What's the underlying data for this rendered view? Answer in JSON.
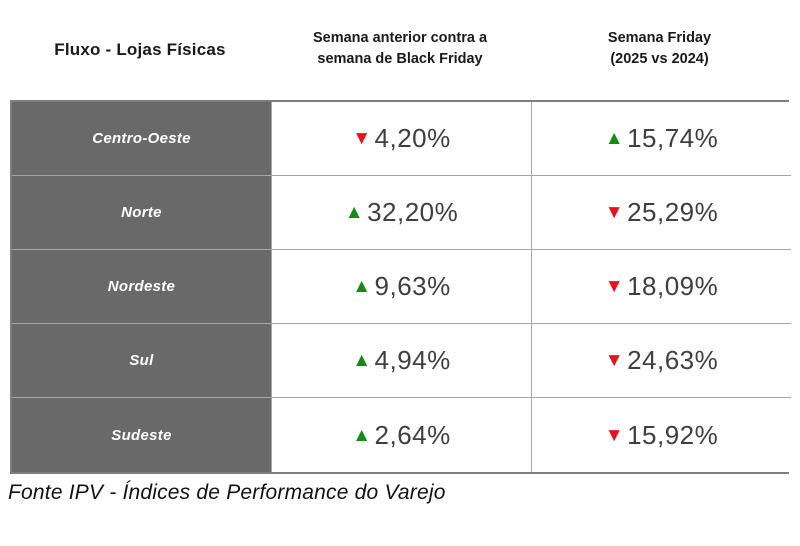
{
  "colors": {
    "positive": "#168a16",
    "negative": "#e8131d",
    "row_header_bg": "#696969",
    "border": "#a6a6a6"
  },
  "header": {
    "title": "Fluxo - Lojas Físicas",
    "col_black_friday": {
      "line1": "Semana anterior contra a",
      "line2": "semana de Black Friday"
    },
    "col_friday": {
      "line1": "Semana Friday",
      "line2": "(2025 vs 2024)"
    }
  },
  "chart_data": {
    "type": "table",
    "title": "Fluxo - Lojas Físicas",
    "columns": [
      "Fluxo - Lojas Físicas",
      "Semana anterior contra a semana de Black Friday",
      "Semana Friday (2025 vs 2024)"
    ],
    "rows": [
      {
        "region": "Centro-Oeste",
        "black_friday_week": {
          "arrow": "▼",
          "direction": "down",
          "value": "4,20%"
        },
        "friday_week": {
          "arrow": "▲",
          "direction": "up",
          "value": "15,74%"
        }
      },
      {
        "region": "Norte",
        "black_friday_week": {
          "arrow": "▲",
          "direction": "up",
          "value": "32,20%"
        },
        "friday_week": {
          "arrow": "▼",
          "direction": "down",
          "value": "25,29%"
        }
      },
      {
        "region": "Nordeste",
        "black_friday_week": {
          "arrow": "▲",
          "direction": "up",
          "value": "9,63%"
        },
        "friday_week": {
          "arrow": "▼",
          "direction": "down",
          "value": "18,09%"
        }
      },
      {
        "region": "Sul",
        "black_friday_week": {
          "arrow": "▲",
          "direction": "up",
          "value": "4,94%"
        },
        "friday_week": {
          "arrow": "▼",
          "direction": "down",
          "value": "24,63%"
        }
      },
      {
        "region": "Sudeste",
        "black_friday_week": {
          "arrow": "▲",
          "direction": "up",
          "value": "2,64%"
        },
        "friday_week": {
          "arrow": "▼",
          "direction": "down",
          "value": "15,92%"
        }
      }
    ]
  },
  "footer": {
    "source": "Fonte IPV - Índices de Performance do Varejo"
  }
}
